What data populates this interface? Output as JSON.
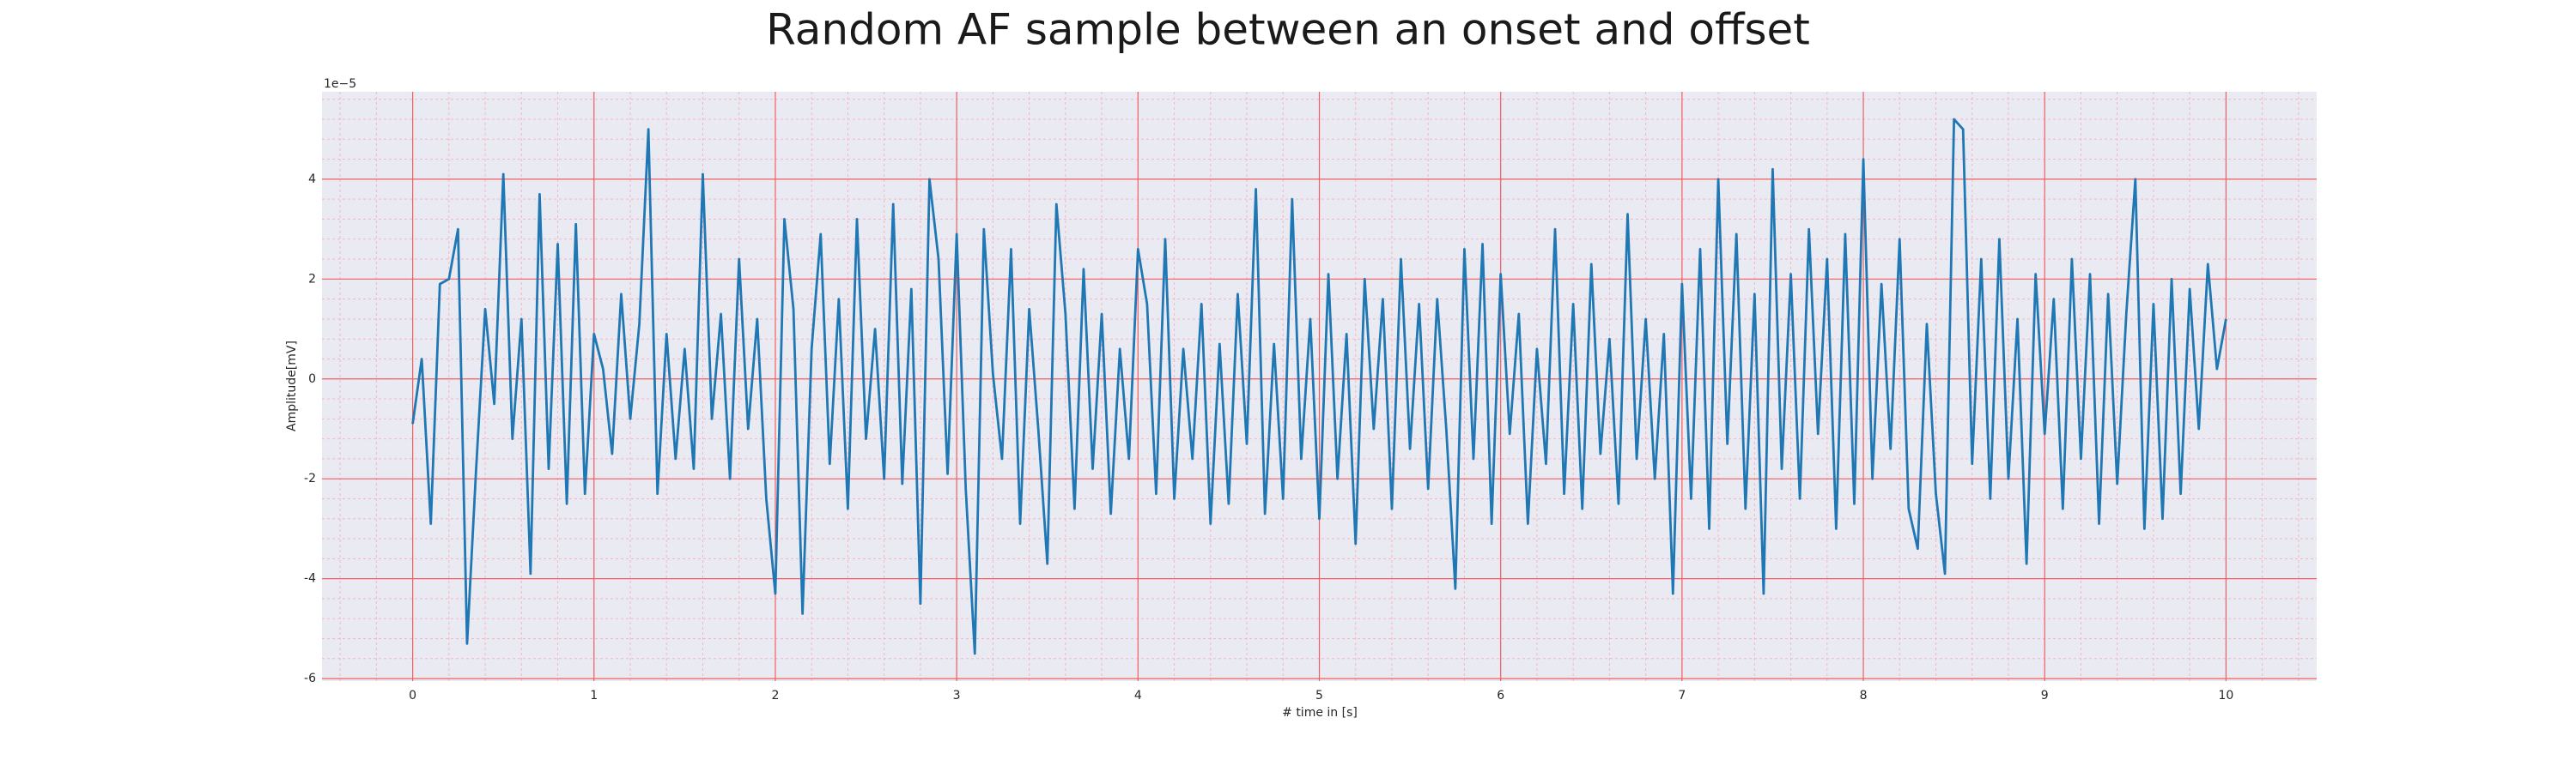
{
  "chart_data": {
    "type": "line",
    "title": "Random AF sample between an onset and offset",
    "xlabel": "# time in [s]",
    "ylabel": "Amplitude[mV]",
    "y_offset_label": "1e−5",
    "color": "#1f77b4",
    "grid": true,
    "minor_grid": true,
    "xlim": [
      -0.5,
      10.5
    ],
    "ylim": [
      -6.05,
      5.75
    ],
    "xticks": [
      0,
      1,
      2,
      3,
      4,
      5,
      6,
      7,
      8,
      9,
      10
    ],
    "yticks": [
      -6,
      -4,
      -2,
      0,
      2,
      4
    ],
    "x": [
      0,
      0.05,
      0.1,
      0.15,
      0.2,
      0.25,
      0.3,
      0.35,
      0.4,
      0.45,
      0.5,
      0.55,
      0.6,
      0.65,
      0.7,
      0.75,
      0.8,
      0.85,
      0.9,
      0.95,
      1,
      1.05,
      1.1,
      1.15,
      1.2,
      1.25,
      1.3,
      1.35,
      1.4,
      1.45,
      1.5,
      1.55,
      1.6,
      1.65,
      1.7,
      1.75,
      1.8,
      1.85,
      1.9,
      1.95,
      2,
      2.05,
      2.1,
      2.15,
      2.2,
      2.25,
      2.3,
      2.35,
      2.4,
      2.45,
      2.5,
      2.55,
      2.6,
      2.65,
      2.7,
      2.75,
      2.8,
      2.85,
      2.9,
      2.95,
      3,
      3.05,
      3.1,
      3.15,
      3.2,
      3.25,
      3.3,
      3.35,
      3.4,
      3.45,
      3.5,
      3.55,
      3.6,
      3.65,
      3.7,
      3.75,
      3.8,
      3.85,
      3.9,
      3.95,
      4,
      4.05,
      4.1,
      4.15,
      4.2,
      4.25,
      4.3,
      4.35,
      4.4,
      4.45,
      4.5,
      4.55,
      4.6,
      4.65,
      4.7,
      4.75,
      4.8,
      4.85,
      4.9,
      4.95,
      5,
      5.05,
      5.1,
      5.15,
      5.2,
      5.25,
      5.3,
      5.35,
      5.4,
      5.45,
      5.5,
      5.55,
      5.6,
      5.65,
      5.7,
      5.75,
      5.8,
      5.85,
      5.9,
      5.95,
      6,
      6.05,
      6.1,
      6.15,
      6.2,
      6.25,
      6.3,
      6.35,
      6.4,
      6.45,
      6.5,
      6.55,
      6.6,
      6.65,
      6.7,
      6.75,
      6.8,
      6.85,
      6.9,
      6.95,
      7,
      7.05,
      7.1,
      7.15,
      7.2,
      7.25,
      7.3,
      7.35,
      7.4,
      7.45,
      7.5,
      7.55,
      7.6,
      7.65,
      7.7,
      7.75,
      7.8,
      7.85,
      7.9,
      7.95,
      8,
      8.05,
      8.1,
      8.15,
      8.2,
      8.25,
      8.3,
      8.35,
      8.4,
      8.45,
      8.5,
      8.55,
      8.6,
      8.65,
      8.7,
      8.75,
      8.8,
      8.85,
      8.9,
      8.95,
      9,
      9.05,
      9.1,
      9.15,
      9.2,
      9.25,
      9.3,
      9.35,
      9.4,
      9.45,
      9.5,
      9.55,
      9.6,
      9.65,
      9.7,
      9.75,
      9.8,
      9.85,
      9.9,
      9.95,
      10
    ],
    "values": [
      -0.9,
      0.4,
      -2.9,
      1.9,
      2.0,
      3.0,
      -5.3,
      -1.8,
      1.4,
      -0.5,
      4.1,
      -1.2,
      1.2,
      -3.9,
      3.7,
      -1.8,
      2.7,
      -2.5,
      3.1,
      -2.3,
      0.9,
      0.2,
      -1.5,
      1.7,
      -0.8,
      1.1,
      5.0,
      -2.3,
      0.9,
      -1.6,
      0.6,
      -1.8,
      4.1,
      -0.8,
      1.3,
      -2.0,
      2.4,
      -1.0,
      1.2,
      -2.4,
      -4.3,
      3.2,
      1.4,
      -4.7,
      0.6,
      2.9,
      -1.7,
      1.6,
      -2.6,
      3.2,
      -1.2,
      1.0,
      -2.0,
      3.5,
      -2.1,
      1.8,
      -4.5,
      4.0,
      2.4,
      -1.9,
      2.9,
      -2.2,
      -5.5,
      3.0,
      0.1,
      -1.6,
      2.6,
      -2.9,
      1.4,
      -1.0,
      -3.7,
      3.5,
      1.3,
      -2.6,
      2.2,
      -1.8,
      1.3,
      -2.7,
      0.6,
      -1.6,
      2.6,
      1.5,
      -2.3,
      2.8,
      -2.4,
      0.6,
      -1.6,
      1.5,
      -2.9,
      0.7,
      -2.5,
      1.7,
      -1.3,
      3.8,
      -2.7,
      0.7,
      -2.4,
      3.6,
      -1.6,
      1.2,
      -2.8,
      2.1,
      -2.0,
      0.9,
      -3.3,
      2.0,
      -1.0,
      1.6,
      -2.6,
      2.4,
      -1.4,
      1.5,
      -2.2,
      1.6,
      -1.0,
      -4.2,
      2.6,
      -1.6,
      2.7,
      -2.9,
      2.1,
      -1.1,
      1.3,
      -2.9,
      0.6,
      -1.7,
      3.0,
      -2.3,
      1.5,
      -2.6,
      2.3,
      -1.5,
      0.8,
      -2.5,
      3.3,
      -1.6,
      1.2,
      -2.0,
      0.9,
      -4.3,
      1.9,
      -2.4,
      2.6,
      -3.0,
      4.0,
      -1.3,
      2.9,
      -2.6,
      1.7,
      -4.3,
      4.2,
      -1.8,
      2.1,
      -2.4,
      3.0,
      -1.1,
      2.4,
      -3.0,
      2.9,
      -2.5,
      4.4,
      -2.0,
      1.9,
      -1.4,
      2.8,
      -2.6,
      -3.4,
      1.1,
      -2.3,
      -3.9,
      5.2,
      5.0,
      -1.7,
      2.4,
      -2.4,
      2.8,
      -2.0,
      1.2,
      -3.7,
      2.1,
      -1.1,
      1.6,
      -2.6,
      2.4,
      -1.6,
      2.1,
      -2.9,
      1.7,
      -2.1,
      1.3,
      4.0,
      -3.0,
      1.5,
      -2.8,
      2.0,
      -2.3,
      1.8,
      -1.0,
      2.3,
      0.2,
      1.2
    ]
  }
}
